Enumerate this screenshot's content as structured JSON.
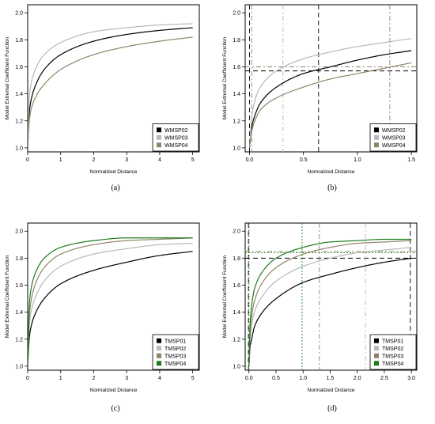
{
  "colors": {
    "black": "#000000",
    "lightgray": "#b8b8b8",
    "olive": "#8f8466",
    "green": "#1e7b1e"
  },
  "chart_data": [
    {
      "type": "line",
      "caption": "(a)",
      "xlabel": "Normalized Distance",
      "ylabel": "Model Extremal Coefficient Function",
      "xlim": [
        0,
        5.2
      ],
      "ylim": [
        0.97,
        2.06
      ],
      "xticks": [
        0,
        1,
        2,
        3,
        4,
        5
      ],
      "xticklabels": [
        "0",
        "1",
        "2",
        "3",
        "4",
        "5"
      ],
      "yticks": [
        1.0,
        1.2,
        1.4,
        1.6,
        1.8,
        2.0
      ],
      "yticklabels": [
        "1.0",
        "1.2",
        "1.4",
        "1.6",
        "1.8",
        "2.0"
      ],
      "legend_position": "bottom-right",
      "x_end": 5,
      "series": [
        {
          "name": "WMSP02",
          "color": "#000000",
          "line": "solid",
          "x": [
            0,
            0.05,
            0.1,
            0.25,
            0.5,
            1,
            2,
            3,
            4,
            5
          ],
          "y": [
            1.0,
            1.26,
            1.35,
            1.47,
            1.58,
            1.69,
            1.79,
            1.84,
            1.87,
            1.89
          ]
        },
        {
          "name": "WMSP03",
          "color": "#b8b8b8",
          "line": "solid",
          "x": [
            0,
            0.05,
            0.1,
            0.25,
            0.5,
            1,
            2,
            3,
            4,
            5
          ],
          "y": [
            1.0,
            1.37,
            1.47,
            1.59,
            1.69,
            1.78,
            1.86,
            1.89,
            1.91,
            1.92
          ]
        },
        {
          "name": "WMSP04",
          "color": "#8f8466",
          "line": "solid",
          "x": [
            0,
            0.05,
            0.1,
            0.25,
            0.5,
            1,
            2,
            3,
            4,
            5
          ],
          "y": [
            1.0,
            1.2,
            1.28,
            1.38,
            1.47,
            1.58,
            1.69,
            1.75,
            1.79,
            1.82
          ]
        }
      ],
      "hlines": [],
      "vlines": []
    },
    {
      "type": "line",
      "caption": "(b)",
      "xlabel": "Normalized Distance",
      "ylabel": "Model Extremal Coefficient Function",
      "xlim": [
        -0.04,
        1.55
      ],
      "ylim": [
        0.97,
        2.06
      ],
      "xticks": [
        0,
        0.5,
        1.0,
        1.5
      ],
      "xticklabels": [
        "0.0",
        "0.5",
        "1.0",
        "1.5"
      ],
      "yticks": [
        1.0,
        1.2,
        1.4,
        1.6,
        1.8,
        2.0
      ],
      "yticklabels": [
        "1.0",
        "1.2",
        "1.4",
        "1.6",
        "1.8",
        "2.0"
      ],
      "legend_position": "bottom-right",
      "x_end": 1.5,
      "series": [
        {
          "name": "WMSP02",
          "color": "#000000",
          "line": "solid",
          "x": [
            0,
            0.02,
            0.05,
            0.1,
            0.25,
            0.5,
            0.75,
            1.0,
            1.25,
            1.5
          ],
          "y": [
            1.0,
            1.15,
            1.24,
            1.33,
            1.45,
            1.55,
            1.6,
            1.65,
            1.69,
            1.72
          ]
        },
        {
          "name": "WMSP03",
          "color": "#b8b8b8",
          "line": "solid",
          "x": [
            0,
            0.02,
            0.05,
            0.1,
            0.25,
            0.5,
            0.75,
            1.0,
            1.25,
            1.5
          ],
          "y": [
            1.0,
            1.22,
            1.35,
            1.45,
            1.57,
            1.66,
            1.71,
            1.75,
            1.78,
            1.81
          ]
        },
        {
          "name": "WMSP04",
          "color": "#8f8466",
          "line": "solid",
          "x": [
            0,
            0.02,
            0.05,
            0.1,
            0.25,
            0.5,
            0.75,
            1.0,
            1.25,
            1.5
          ],
          "y": [
            1.0,
            1.12,
            1.2,
            1.28,
            1.37,
            1.45,
            1.51,
            1.55,
            1.59,
            1.63
          ]
        }
      ],
      "hlines": [
        {
          "y": 1.57,
          "color": "#000000",
          "dash": "6,4"
        },
        {
          "y": 1.6,
          "color": "#8f8466",
          "dash": "6,3,2,3"
        }
      ],
      "vlines": [
        {
          "x": 0.0,
          "color": "#000000",
          "dash": "6,4"
        },
        {
          "x": 0.02,
          "color": "#8f8466",
          "dash": "6,3,2,3"
        },
        {
          "x": 0.31,
          "color": "#b8b8b8",
          "dash": "6,3,2,3"
        },
        {
          "x": 0.64,
          "color": "#000000",
          "dash": "6,4"
        },
        {
          "x": 1.3,
          "color": "#8f8466",
          "dash": "6,3,2,3"
        }
      ]
    },
    {
      "type": "line",
      "caption": "(c)",
      "xlabel": "Normalized Distance",
      "ylabel": "Model Extremal Coefficient Function",
      "xlim": [
        0,
        5.2
      ],
      "ylim": [
        0.97,
        2.06
      ],
      "xticks": [
        0,
        1,
        2,
        3,
        4,
        5
      ],
      "xticklabels": [
        "0",
        "1",
        "2",
        "3",
        "4",
        "5"
      ],
      "yticks": [
        1.0,
        1.2,
        1.4,
        1.6,
        1.8,
        2.0
      ],
      "yticklabels": [
        "1.0",
        "1.2",
        "1.4",
        "1.6",
        "1.8",
        "2.0"
      ],
      "legend_position": "bottom-right",
      "x_end": 5,
      "series": [
        {
          "name": "TMSP01",
          "color": "#000000",
          "line": "solid",
          "x": [
            0,
            0.05,
            0.1,
            0.25,
            0.5,
            1,
            2,
            3,
            4,
            5
          ],
          "y": [
            1.0,
            1.21,
            1.29,
            1.4,
            1.5,
            1.61,
            1.71,
            1.77,
            1.82,
            1.85
          ]
        },
        {
          "name": "TMSP02",
          "color": "#b8b8b8",
          "line": "solid",
          "x": [
            0,
            0.05,
            0.1,
            0.25,
            0.5,
            1,
            2,
            3,
            4,
            5
          ],
          "y": [
            1.0,
            1.3,
            1.4,
            1.52,
            1.63,
            1.74,
            1.83,
            1.87,
            1.9,
            1.91
          ]
        },
        {
          "name": "TMSP03",
          "color": "#8f8466",
          "line": "solid",
          "x": [
            0,
            0.05,
            0.1,
            0.25,
            0.5,
            1,
            2,
            3,
            4,
            5
          ],
          "y": [
            1.0,
            1.37,
            1.48,
            1.62,
            1.73,
            1.83,
            1.9,
            1.93,
            1.94,
            1.95
          ]
        },
        {
          "name": "TMSP04",
          "color": "#1e7b1e",
          "line": "solid",
          "x": [
            0,
            0.05,
            0.1,
            0.25,
            0.5,
            1,
            2,
            3,
            4,
            5
          ],
          "y": [
            1.0,
            1.45,
            1.57,
            1.7,
            1.8,
            1.88,
            1.93,
            1.95,
            1.95,
            1.95
          ]
        }
      ],
      "hlines": [],
      "vlines": []
    },
    {
      "type": "line",
      "caption": "(d)",
      "xlabel": "Normalized Distance",
      "ylabel": "Model Extremal Coefficient Function",
      "xlim": [
        -0.07,
        3.1
      ],
      "ylim": [
        0.97,
        2.06
      ],
      "xticks": [
        0,
        0.5,
        1.0,
        1.5,
        2.0,
        2.5,
        3.0
      ],
      "xticklabels": [
        "0.0",
        "0.5",
        "1.0",
        "1.5",
        "2.0",
        "2.5",
        "3.0"
      ],
      "yticks": [
        1.0,
        1.2,
        1.4,
        1.6,
        1.8,
        2.0
      ],
      "yticklabels": [
        "1.0",
        "1.2",
        "1.4",
        "1.6",
        "1.8",
        "2.0"
      ],
      "legend_position": "bottom-right",
      "x_end": 3.0,
      "series": [
        {
          "name": "TMSP01",
          "color": "#000000",
          "line": "solid",
          "x": [
            0,
            0.02,
            0.05,
            0.1,
            0.25,
            0.5,
            1,
            1.5,
            2,
            2.5,
            3
          ],
          "y": [
            1.0,
            1.14,
            1.2,
            1.29,
            1.4,
            1.5,
            1.62,
            1.68,
            1.73,
            1.77,
            1.8
          ]
        },
        {
          "name": "TMSP02",
          "color": "#b8b8b8",
          "line": "solid",
          "x": [
            0,
            0.02,
            0.05,
            0.1,
            0.25,
            0.5,
            1,
            1.5,
            2,
            2.5,
            3
          ],
          "y": [
            1.0,
            1.2,
            1.3,
            1.4,
            1.52,
            1.63,
            1.74,
            1.8,
            1.84,
            1.86,
            1.88
          ]
        },
        {
          "name": "TMSP03",
          "color": "#8f8466",
          "line": "solid",
          "x": [
            0,
            0.02,
            0.05,
            0.1,
            0.25,
            0.5,
            1,
            1.5,
            2,
            2.5,
            3
          ],
          "y": [
            1.0,
            1.24,
            1.37,
            1.48,
            1.62,
            1.73,
            1.83,
            1.88,
            1.91,
            1.92,
            1.93
          ]
        },
        {
          "name": "TMSP04",
          "color": "#1e7b1e",
          "line": "solid",
          "x": [
            0,
            0.02,
            0.05,
            0.1,
            0.25,
            0.5,
            1,
            1.5,
            2,
            2.5,
            3
          ],
          "y": [
            1.0,
            1.3,
            1.45,
            1.57,
            1.7,
            1.8,
            1.88,
            1.92,
            1.93,
            1.94,
            1.94
          ]
        }
      ],
      "hlines": [
        {
          "y": 1.8,
          "color": "#000000",
          "dash": "6,4"
        },
        {
          "y": 1.84,
          "color": "#1e7b1e",
          "dash": "2,2"
        },
        {
          "y": 1.85,
          "color": "#8f8466",
          "dash": "6,3,2,3"
        }
      ],
      "vlines": [
        {
          "x": -0.01,
          "color": "#000000",
          "dash": "6,4"
        },
        {
          "x": 0.0,
          "color": "#1e7b1e",
          "dash": "2,2"
        },
        {
          "x": 0.98,
          "color": "#1e7b1e",
          "dash": "2,2"
        },
        {
          "x": 1.3,
          "color": "#8f8466",
          "dash": "6,3,2,3"
        },
        {
          "x": 2.15,
          "color": "#b8b8b8",
          "dash": "6,3,2,3"
        },
        {
          "x": 2.98,
          "color": "#000000",
          "dash": "6,4"
        }
      ]
    }
  ]
}
